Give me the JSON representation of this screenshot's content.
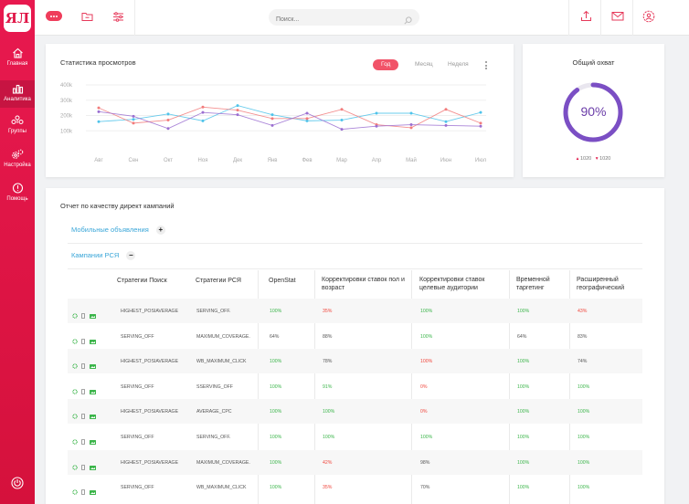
{
  "sidebar": {
    "logo": "ЯЛ",
    "items": [
      {
        "label": "Главная",
        "icon": "home-icon"
      },
      {
        "label": "Аналитика",
        "icon": "bar-chart-icon"
      },
      {
        "label": "Группы",
        "icon": "groups-icon"
      },
      {
        "label": "Настройка",
        "icon": "gears-icon"
      },
      {
        "label": "Помощь",
        "icon": "help-icon"
      }
    ],
    "active_index": 1,
    "power_icon": "power-icon"
  },
  "topbar": {
    "search_placeholder": "Поиск...",
    "icons": [
      "more-icon",
      "folder-icon",
      "sliders-icon",
      "upload-icon",
      "mail-icon",
      "profile-settings-icon"
    ]
  },
  "stats": {
    "title": "Статистика просмотров",
    "tabs": [
      "Год",
      "Месяц",
      "Неделя"
    ],
    "active_tab": "Год"
  },
  "chart_data": {
    "type": "line",
    "title": "Статистика просмотров",
    "xlabel": "",
    "ylabel": "",
    "categories": [
      "Авг",
      "Сен",
      "Окт",
      "Ноя",
      "Дек",
      "Янв",
      "Фев",
      "Мар",
      "Апр",
      "Май",
      "Июн",
      "Июл"
    ],
    "yticks": [
      "400k",
      "300k",
      "200k",
      "100k"
    ],
    "ylim": [
      0,
      400
    ],
    "grid": true,
    "colors": {
      "series1": "#4fc3ea",
      "series2": "#f27c7c",
      "series3": "#9b6fd1"
    },
    "series": [
      {
        "values": [
          160,
          175,
          210,
          165,
          265,
          205,
          165,
          170,
          215,
          215,
          160,
          220
        ]
      },
      {
        "values": [
          250,
          150,
          170,
          255,
          235,
          180,
          180,
          240,
          140,
          120,
          240,
          150
        ]
      },
      {
        "values": [
          225,
          195,
          115,
          220,
          205,
          135,
          215,
          110,
          130,
          140,
          135,
          130
        ]
      }
    ]
  },
  "reach": {
    "title": "Общий охват",
    "percent": 90,
    "percent_label": "90%",
    "legend_up": "1020",
    "legend_down": "1020",
    "ring_color": "#7b4fc4"
  },
  "table": {
    "title": "Отчет по качеству директ кампаний",
    "groups": [
      {
        "label": "Мобильные объявления",
        "toggle": "+"
      },
      {
        "label": "Кампании РСЯ",
        "toggle": "−"
      }
    ],
    "columns": [
      "Стратегии Поиск",
      "Стратегии РСЯ",
      "OpenStat",
      "Корректировки ставок пол и возраст",
      "Корректировки ставок целевые аудитории",
      "Временной таргетинг",
      "Расширенный географический"
    ],
    "rows": [
      {
        "search": "HIGHEST_POSIAVERAGE",
        "rsya": "SERVING_OFF.",
        "openstat": "100%",
        "gender": "35%",
        "audience": "100%",
        "time": "100%",
        "geo": "43%",
        "c_open": "green",
        "c_gender": "red",
        "c_aud": "green",
        "c_time": "green",
        "c_geo": "red",
        "icons": [
          "gear-icon",
          "phone-icon",
          "image-icon"
        ]
      },
      {
        "search": "SERVING_OFF",
        "rsya": "MAXIMUM_COVERAGE.",
        "openstat": "64%",
        "gender": "88%",
        "audience": "100%",
        "time": "64%",
        "geo": "83%",
        "c_open": "gray",
        "c_gender": "gray",
        "c_aud": "green",
        "c_time": "gray",
        "c_geo": "gray",
        "icons": [
          "gear-icon",
          "phone-icon",
          "image-icon"
        ]
      },
      {
        "search": "HIGHEST_POSIAVERAGE",
        "rsya": "WB_MAXIMUM_CLICK",
        "openstat": "100%",
        "gender": "78%",
        "audience": "100%",
        "time": "100%",
        "geo": "74%",
        "c_open": "green",
        "c_gender": "gray",
        "c_aud": "red",
        "c_time": "green",
        "c_geo": "gray",
        "icons": [
          "gear-icon",
          "phone-icon",
          "image-icon"
        ]
      },
      {
        "search": "SERVING_OFF",
        "rsya": "SSERVING_OFF",
        "openstat": "100%",
        "gender": "91%",
        "audience": "0%",
        "time": "100%",
        "geo": "100%",
        "c_open": "green",
        "c_gender": "green",
        "c_aud": "red",
        "c_time": "green",
        "c_geo": "green",
        "icons": [
          "gear-icon",
          "phone-icon",
          "image-icon"
        ]
      },
      {
        "search": "HIGHEST_POSIAVERAGE",
        "rsya": "AVERAGE_CPC",
        "openstat": "100%",
        "gender": "100%",
        "audience": "0%",
        "time": "100%",
        "geo": "100%",
        "c_open": "green",
        "c_gender": "green",
        "c_aud": "red",
        "c_time": "green",
        "c_geo": "green",
        "icons": [
          "gear-icon",
          "phone-icon",
          "image-icon"
        ]
      },
      {
        "search": "SERVING_OFF",
        "rsya": "SERVING_OFF.",
        "openstat": "100%",
        "gender": "100%",
        "audience": "100%",
        "time": "100%",
        "geo": "100%",
        "c_open": "green",
        "c_gender": "green",
        "c_aud": "green",
        "c_time": "green",
        "c_geo": "green",
        "icons": [
          "gear-icon",
          "phone-icon",
          "image-icon"
        ]
      },
      {
        "search": "HIGHEST_POSIAVERAGE",
        "rsya": "MAXIMUM_COVERAGE.",
        "openstat": "100%",
        "gender": "42%",
        "audience": "98%",
        "time": "100%",
        "geo": "100%",
        "c_open": "green",
        "c_gender": "red",
        "c_aud": "gray",
        "c_time": "green",
        "c_geo": "green",
        "icons": [
          "gear-icon",
          "phone-icon",
          "image-icon"
        ]
      },
      {
        "search": "SERVING_OFF",
        "rsya": "WB_MAXIMUM_CLICK",
        "openstat": "100%",
        "gender": "35%",
        "audience": "70%",
        "time": "100%",
        "geo": "100%",
        "c_open": "green",
        "c_gender": "red",
        "c_aud": "gray",
        "c_time": "green",
        "c_geo": "green",
        "icons": [
          "gear-icon",
          "phone-icon",
          "image-icon"
        ]
      }
    ]
  }
}
